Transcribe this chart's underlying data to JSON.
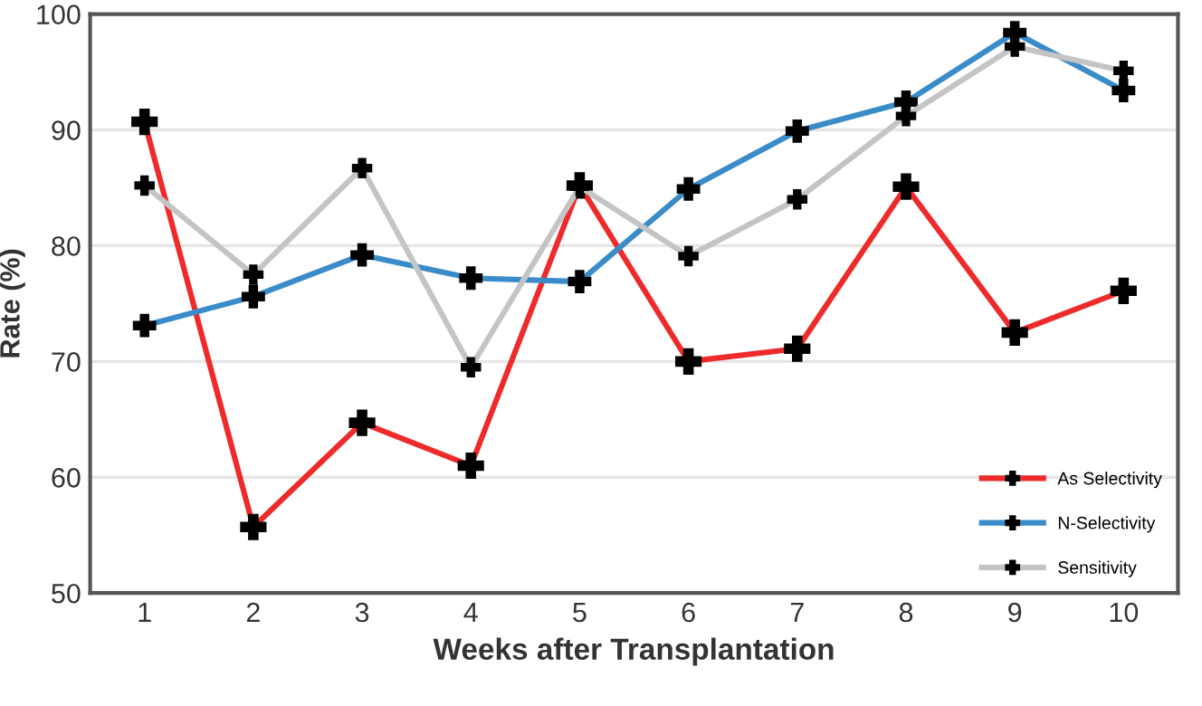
{
  "chart_data": {
    "type": "line",
    "xlabel": "Weeks after Transplantation",
    "ylabel": "Rate (%)",
    "categories": [
      "1",
      "2",
      "3",
      "4",
      "5",
      "6",
      "7",
      "8",
      "9",
      "10"
    ],
    "series": [
      {
        "name": "As Selectivity",
        "color": "#ee2a2a",
        "values": [
          90.7,
          55.7,
          64.7,
          61.0,
          85.2,
          70.0,
          71.1,
          85.1,
          72.5,
          76.1
        ]
      },
      {
        "name": "N-Selectivity",
        "color": "#3a8cc8",
        "values": [
          73.1,
          75.6,
          79.2,
          77.2,
          76.9,
          84.9,
          89.9,
          92.4,
          98.4,
          93.4
        ]
      },
      {
        "name": "Sensitivity",
        "color": "#c4c4c4",
        "values": [
          85.2,
          77.5,
          86.7,
          69.5,
          85.1,
          79.1,
          84.0,
          91.2,
          97.2,
          95.1
        ]
      }
    ],
    "ylim": [
      50,
      100
    ],
    "yticks": [
      50,
      60,
      70,
      80,
      90,
      100
    ],
    "grid": "y",
    "legend": "bottom right",
    "marker": "cross",
    "line_style": "solid"
  }
}
